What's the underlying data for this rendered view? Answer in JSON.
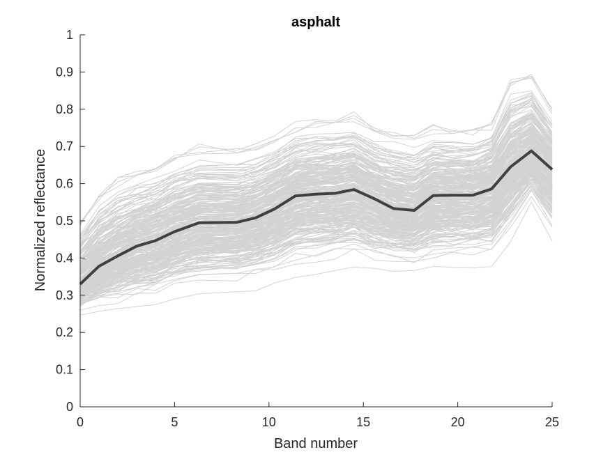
{
  "chart_data": {
    "type": "line",
    "title": "asphalt",
    "xlabel": "Band number",
    "ylabel": "Normalized reflectance",
    "xlim": [
      0,
      25
    ],
    "ylim": [
      0,
      1
    ],
    "xticks": [
      0,
      5,
      10,
      15,
      20,
      25
    ],
    "yticks": [
      0,
      0.1,
      0.2,
      0.3,
      0.4,
      0.5,
      0.6,
      0.7,
      0.8,
      0.9,
      1
    ],
    "grid": false,
    "legend": "none",
    "mean_series": {
      "color": "#404040",
      "x": [
        0,
        1,
        2,
        3,
        4,
        5,
        6.3,
        8.3,
        9.3,
        10.3,
        11.4,
        12.5,
        13.5,
        14.5,
        15.6,
        16.6,
        17.7,
        18.7,
        19.7,
        20.8,
        21.8,
        22.8,
        23.9,
        25
      ],
      "y": [
        0.33,
        0.378,
        0.406,
        0.432,
        0.447,
        0.471,
        0.495,
        0.496,
        0.508,
        0.532,
        0.567,
        0.572,
        0.574,
        0.584,
        0.559,
        0.533,
        0.528,
        0.568,
        0.569,
        0.569,
        0.586,
        0.645,
        0.688,
        0.638
      ]
    },
    "sample_envelope": {
      "color": "#d3d3d3",
      "count": 300,
      "low": [
        0.24,
        0.245,
        0.25,
        0.255,
        0.26,
        0.275,
        0.285,
        0.29,
        0.3,
        0.31,
        0.33,
        0.34,
        0.345,
        0.355,
        0.345,
        0.35,
        0.345,
        0.355,
        0.355,
        0.36,
        0.36,
        0.43,
        0.53,
        0.43
      ],
      "high": [
        0.555,
        0.64,
        0.69,
        0.7,
        0.72,
        0.745,
        0.77,
        0.76,
        0.77,
        0.795,
        0.82,
        0.84,
        0.845,
        0.85,
        0.81,
        0.81,
        0.8,
        0.81,
        0.8,
        0.8,
        0.82,
        0.96,
        0.96,
        0.85
      ]
    }
  }
}
